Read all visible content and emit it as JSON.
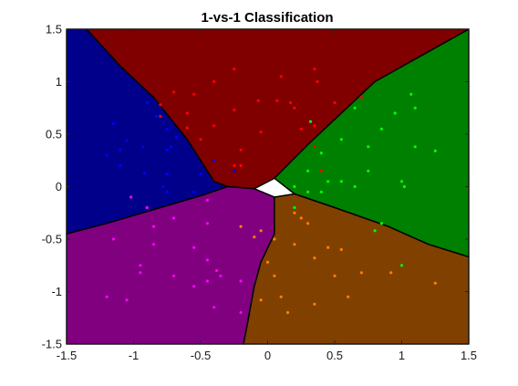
{
  "chart_data": {
    "type": "scatter",
    "title": "1-vs-1 Classification",
    "xlabel": "",
    "ylabel": "",
    "xlim": [
      -1.5,
      1.5
    ],
    "ylim": [
      -1.5,
      1.5
    ],
    "xticks": [
      "-1.5",
      "-1",
      "-0.5",
      "0",
      "0.5",
      "1",
      "1.5"
    ],
    "yticks": [
      "1.5",
      "1",
      "0.5",
      "0",
      "-0.5",
      "-1",
      "-1.5"
    ],
    "grid": false,
    "legend": "none",
    "regions": [
      {
        "class": "blue",
        "color": "#00008b",
        "polygon": [
          [
            -1.5,
            1.5
          ],
          [
            -1.35,
            1.5
          ],
          [
            -1.1,
            1.15
          ],
          [
            -0.85,
            0.85
          ],
          [
            -0.6,
            0.45
          ],
          [
            -0.4,
            0.05
          ],
          [
            -0.3,
            0.0
          ],
          [
            -0.48,
            -0.08
          ],
          [
            -0.8,
            -0.2
          ],
          [
            -1.2,
            -0.35
          ],
          [
            -1.5,
            -0.45
          ]
        ]
      },
      {
        "class": "red",
        "color": "#800000",
        "polygon": [
          [
            -1.35,
            1.5
          ],
          [
            1.5,
            1.5
          ],
          [
            0.8,
            1.0
          ],
          [
            0.3,
            0.4
          ],
          [
            0.05,
            0.08
          ],
          [
            -0.1,
            -0.02
          ],
          [
            -0.3,
            0.0
          ],
          [
            -0.4,
            0.05
          ],
          [
            -0.6,
            0.45
          ],
          [
            -0.85,
            0.85
          ],
          [
            -1.1,
            1.15
          ]
        ]
      },
      {
        "class": "green",
        "color": "#008000",
        "polygon": [
          [
            1.5,
            1.5
          ],
          [
            1.5,
            -0.67
          ],
          [
            1.2,
            -0.55
          ],
          [
            0.9,
            -0.38
          ],
          [
            0.5,
            -0.2
          ],
          [
            0.2,
            -0.07
          ],
          [
            0.05,
            0.08
          ],
          [
            0.3,
            0.4
          ],
          [
            0.8,
            1.0
          ]
        ]
      },
      {
        "class": "magenta",
        "color": "#800080",
        "polygon": [
          [
            -1.5,
            -0.45
          ],
          [
            -1.2,
            -0.35
          ],
          [
            -0.8,
            -0.2
          ],
          [
            -0.48,
            -0.08
          ],
          [
            -0.3,
            0.0
          ],
          [
            -0.1,
            -0.02
          ],
          [
            0.05,
            -0.1
          ],
          [
            0.05,
            -0.45
          ],
          [
            -0.05,
            -0.72
          ],
          [
            -0.1,
            -0.95
          ],
          [
            -0.15,
            -1.3
          ],
          [
            -0.18,
            -1.5
          ],
          [
            -1.5,
            -1.5
          ]
        ]
      },
      {
        "class": "orange",
        "color": "#804000",
        "polygon": [
          [
            0.05,
            -0.1
          ],
          [
            0.2,
            -0.07
          ],
          [
            0.5,
            -0.2
          ],
          [
            0.9,
            -0.38
          ],
          [
            1.2,
            -0.55
          ],
          [
            1.5,
            -0.67
          ],
          [
            1.5,
            -1.5
          ],
          [
            -0.18,
            -1.5
          ],
          [
            -0.15,
            -1.3
          ],
          [
            -0.1,
            -0.95
          ],
          [
            -0.05,
            -0.72
          ],
          [
            0.05,
            -0.45
          ]
        ]
      }
    ],
    "series": [
      {
        "color": "#ff0000",
        "points": [
          [
            -0.25,
            1.12
          ],
          [
            0.1,
            1.05
          ],
          [
            0.35,
            1.12
          ],
          [
            0.37,
            1.0
          ],
          [
            -0.4,
            1.0
          ],
          [
            -0.7,
            0.9
          ],
          [
            -0.55,
            0.88
          ],
          [
            -0.8,
            0.78
          ],
          [
            -0.25,
            0.73
          ],
          [
            0.07,
            0.82
          ],
          [
            -0.07,
            0.82
          ],
          [
            0.17,
            0.8
          ],
          [
            0.2,
            0.75
          ],
          [
            0.5,
            0.8
          ],
          [
            0.7,
            0.85
          ],
          [
            -0.6,
            0.7
          ],
          [
            -0.8,
            0.67
          ],
          [
            -0.4,
            0.58
          ],
          [
            0.35,
            0.58
          ],
          [
            -0.6,
            0.56
          ],
          [
            -0.05,
            0.52
          ],
          [
            0.25,
            0.55
          ],
          [
            0.35,
            0.38
          ],
          [
            -0.5,
            0.45
          ],
          [
            -0.2,
            0.35
          ],
          [
            0.4,
            0.15
          ],
          [
            -0.2,
            0.2
          ],
          [
            -0.25,
            0.2
          ]
        ]
      },
      {
        "color": "#0000ff",
        "points": [
          [
            -1.15,
            0.6
          ],
          [
            -0.9,
            0.8
          ],
          [
            -0.83,
            0.67
          ],
          [
            -0.75,
            0.55
          ],
          [
            -0.68,
            0.47
          ],
          [
            -1.05,
            0.44
          ],
          [
            -0.72,
            0.38
          ],
          [
            -0.75,
            0.35
          ],
          [
            -0.93,
            0.38
          ],
          [
            -1.1,
            0.35
          ],
          [
            -1.2,
            0.3
          ],
          [
            -1.1,
            0.2
          ],
          [
            -0.92,
            0.13
          ],
          [
            -0.75,
            0.12
          ],
          [
            -0.5,
            0.12
          ],
          [
            -0.78,
            0.0
          ],
          [
            -0.55,
            -0.05
          ],
          [
            -0.25,
            0.15
          ],
          [
            -0.4,
            0.25
          ],
          [
            -0.75,
            -0.05
          ]
        ]
      },
      {
        "color": "#00ff00",
        "points": [
          [
            1.07,
            0.88
          ],
          [
            1.1,
            0.75
          ],
          [
            0.95,
            0.7
          ],
          [
            0.65,
            0.75
          ],
          [
            0.32,
            0.62
          ],
          [
            0.85,
            0.55
          ],
          [
            1.1,
            0.38
          ],
          [
            1.25,
            0.34
          ],
          [
            0.55,
            0.45
          ],
          [
            0.75,
            0.38
          ],
          [
            0.4,
            0.32
          ],
          [
            0.75,
            0.15
          ],
          [
            1.0,
            0.05
          ],
          [
            1.02,
            0.0
          ],
          [
            0.55,
            0.05
          ],
          [
            0.65,
            0.0
          ],
          [
            0.45,
            0.05
          ],
          [
            0.3,
            0.15
          ],
          [
            0.2,
            0.0
          ],
          [
            0.3,
            -0.05
          ],
          [
            0.4,
            -0.05
          ],
          [
            0.2,
            -0.2
          ],
          [
            0.85,
            -0.35
          ],
          [
            1.0,
            -0.75
          ],
          [
            0.8,
            -0.42
          ]
        ]
      },
      {
        "color": "#ff00ff",
        "points": [
          [
            -1.02,
            -0.1
          ],
          [
            -0.45,
            -0.13
          ],
          [
            -0.9,
            -0.2
          ],
          [
            -0.85,
            -0.38
          ],
          [
            -0.7,
            -0.3
          ],
          [
            -0.85,
            -0.55
          ],
          [
            -1.15,
            -0.5
          ],
          [
            -0.45,
            -0.35
          ],
          [
            -0.55,
            -0.58
          ],
          [
            -0.95,
            -0.75
          ],
          [
            -0.95,
            -0.82
          ],
          [
            -0.7,
            -0.85
          ],
          [
            -0.45,
            -0.7
          ],
          [
            -0.38,
            -0.8
          ],
          [
            -0.35,
            -0.85
          ],
          [
            -0.45,
            -0.9
          ],
          [
            -0.55,
            -0.95
          ],
          [
            -0.2,
            -0.9
          ],
          [
            -1.2,
            -1.05
          ],
          [
            -1.05,
            -1.08
          ],
          [
            -0.4,
            -1.15
          ],
          [
            -0.2,
            -1.2
          ]
        ]
      },
      {
        "color": "#ff8000",
        "points": [
          [
            0.2,
            -0.25
          ],
          [
            0.25,
            -0.3
          ],
          [
            0.3,
            -0.35
          ],
          [
            -0.2,
            -0.38
          ],
          [
            -0.05,
            -0.42
          ],
          [
            -0.1,
            -0.48
          ],
          [
            0.05,
            -0.5
          ],
          [
            0.2,
            -0.55
          ],
          [
            0.45,
            -0.58
          ],
          [
            0.55,
            -0.6
          ],
          [
            0.35,
            -0.68
          ],
          [
            0.0,
            -0.72
          ],
          [
            0.05,
            -0.85
          ],
          [
            0.5,
            -0.85
          ],
          [
            0.7,
            -0.82
          ],
          [
            0.92,
            -0.82
          ],
          [
            1.25,
            -0.92
          ],
          [
            0.1,
            -1.05
          ],
          [
            0.15,
            -1.2
          ],
          [
            -0.05,
            -1.08
          ],
          [
            0.35,
            -1.12
          ],
          [
            0.6,
            -1.05
          ]
        ]
      }
    ]
  }
}
